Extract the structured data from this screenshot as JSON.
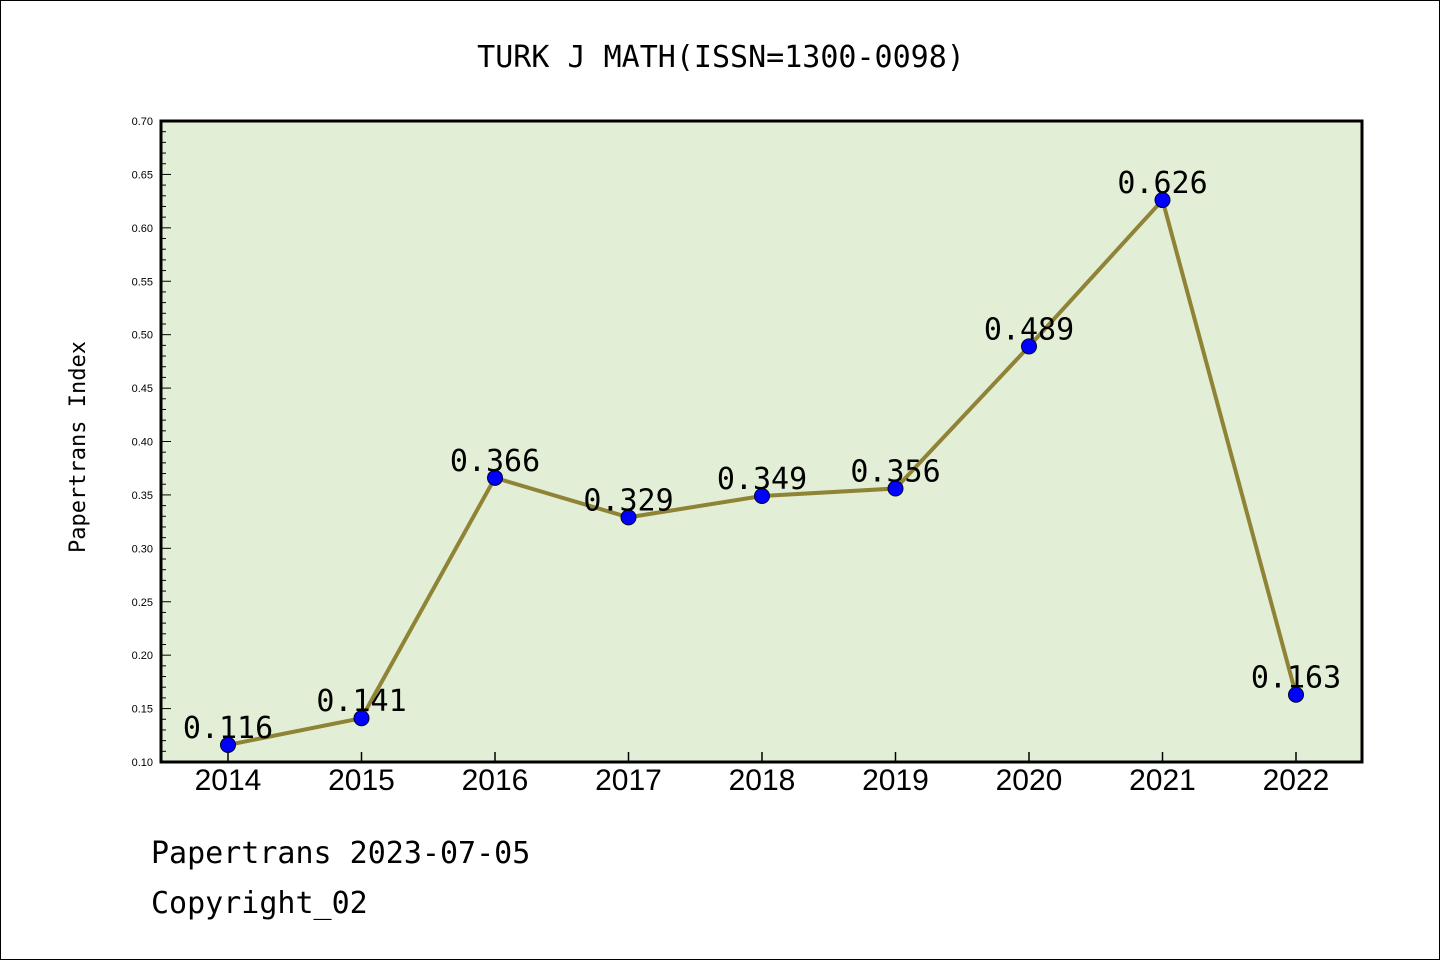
{
  "chart_data": {
    "type": "line",
    "title": "TURK J MATH(ISSN=1300-0098)",
    "xlabel": "",
    "ylabel": "Papertrans Index",
    "categories": [
      "2014",
      "2015",
      "2016",
      "2017",
      "2018",
      "2019",
      "2020",
      "2021",
      "2022"
    ],
    "values": [
      0.116,
      0.141,
      0.366,
      0.329,
      0.349,
      0.356,
      0.489,
      0.626,
      0.163
    ],
    "data_labels": [
      "0.116",
      "0.141",
      "0.366",
      "0.329",
      "0.349",
      "0.356",
      "0.489",
      "0.626",
      "0.163"
    ],
    "ylim": [
      0.1,
      0.7
    ],
    "yticks": [
      "0.10",
      "0.15",
      "0.20",
      "0.25",
      "0.30",
      "0.35",
      "0.40",
      "0.45",
      "0.50",
      "0.55",
      "0.60",
      "0.65",
      "0.70"
    ],
    "grid": false,
    "colors": {
      "plot_background": "#e2efd6",
      "line": "#8f8336",
      "marker": "#0000ff"
    }
  },
  "footer": {
    "line1": "Papertrans 2023-07-05",
    "line2": "Copyright_02"
  }
}
